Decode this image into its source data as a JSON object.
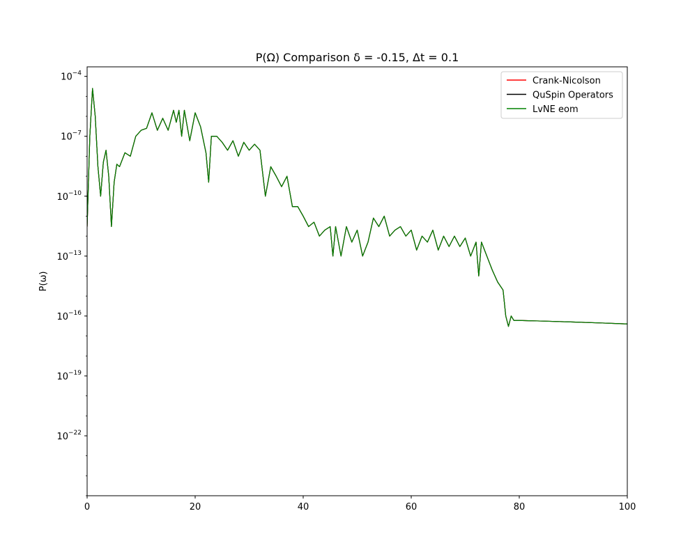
{
  "chart_data": {
    "type": "line",
    "title": "P(Ω) Comparison δ = -0.15, Δt = 0.1",
    "xlabel": "",
    "ylabel": "P(ω)",
    "xlim": [
      0,
      100
    ],
    "ylim": [
      1e-25,
      0.0003
    ],
    "yscale": "log",
    "grid": false,
    "legend_position": "top-right",
    "x_ticks": [
      {
        "value": 0,
        "label": "0"
      },
      {
        "value": 20,
        "label": "20"
      },
      {
        "value": 40,
        "label": "40"
      },
      {
        "value": 60,
        "label": "60"
      },
      {
        "value": 80,
        "label": "80"
      },
      {
        "value": 100,
        "label": "100"
      }
    ],
    "y_ticks": [
      {
        "value": 1e-22,
        "base": "10",
        "exp": "−22"
      },
      {
        "value": 1e-19,
        "base": "10",
        "exp": "−19"
      },
      {
        "value": 1e-16,
        "base": "10",
        "exp": "−16"
      },
      {
        "value": 1e-13,
        "base": "10",
        "exp": "−13"
      },
      {
        "value": 1e-10,
        "base": "10",
        "exp": "−10"
      },
      {
        "value": 1e-07,
        "base": "10",
        "exp": "−7"
      },
      {
        "value": 0.0001,
        "base": "10",
        "exp": "−4"
      }
    ],
    "x": [
      0,
      0.5,
      1.0,
      1.5,
      2.0,
      2.5,
      3.0,
      3.5,
      4.0,
      4.5,
      5.0,
      5.5,
      6.0,
      7.0,
      8.0,
      9.0,
      10.0,
      11.0,
      12.0,
      13.0,
      14.0,
      15.0,
      16.0,
      16.5,
      17.0,
      17.5,
      18.0,
      19.0,
      20.0,
      21.0,
      22.0,
      22.5,
      23.0,
      24.0,
      25.0,
      26.0,
      27.0,
      28.0,
      29.0,
      30.0,
      31.0,
      32.0,
      33.0,
      34.0,
      35.0,
      36.0,
      37.0,
      38.0,
      39.0,
      40.0,
      41.0,
      42.0,
      43.0,
      44.0,
      45.0,
      45.5,
      46.0,
      47.0,
      48.0,
      49.0,
      50.0,
      51.0,
      52.0,
      53.0,
      54.0,
      55.0,
      56.0,
      57.0,
      58.0,
      59.0,
      60.0,
      61.0,
      62.0,
      63.0,
      64.0,
      65.0,
      66.0,
      67.0,
      68.0,
      69.0,
      70.0,
      71.0,
      72.0,
      72.5,
      73.0,
      74.0,
      75.0,
      76.0,
      77.0,
      77.5,
      78.0,
      78.5,
      79.0,
      80.0,
      85.0,
      90.0,
      95.0,
      100.0
    ],
    "series": [
      {
        "name": "Crank-Nicolson",
        "color": "#ff0000",
        "y": [
          3e-12,
          1e-07,
          2.5e-05,
          1e-06,
          3e-09,
          1e-10,
          5e-09,
          2e-08,
          1e-09,
          3e-12,
          5e-10,
          4e-09,
          3e-09,
          1.5e-08,
          1e-08,
          1e-07,
          2e-07,
          2.5e-07,
          1.5e-06,
          2e-07,
          8e-07,
          2e-07,
          2e-06,
          5e-07,
          2e-06,
          1e-07,
          2e-06,
          6e-08,
          1.5e-06,
          3e-07,
          1.5e-08,
          5e-10,
          1e-07,
          1e-07,
          5e-08,
          2e-08,
          6e-08,
          1e-08,
          5e-08,
          2e-08,
          4e-08,
          2e-08,
          1e-10,
          3e-09,
          1e-09,
          3e-10,
          1e-09,
          3e-11,
          3e-11,
          1e-11,
          3e-12,
          5e-12,
          1e-12,
          2e-12,
          3e-12,
          1e-13,
          3e-12,
          1e-13,
          3e-12,
          5e-13,
          2e-12,
          1e-13,
          5e-13,
          8e-12,
          3e-12,
          1e-11,
          1e-12,
          2e-12,
          3e-12,
          1e-12,
          2e-12,
          2e-13,
          1e-12,
          5e-13,
          2e-12,
          2e-13,
          1e-12,
          3e-13,
          1e-12,
          3e-13,
          8e-13,
          1e-13,
          5e-13,
          1e-14,
          5e-13,
          1e-13,
          2e-14,
          5e-15,
          2e-15,
          1e-16,
          3e-17,
          1e-16,
          6e-17,
          6e-17,
          5.5e-17,
          5e-17,
          4.5e-17,
          4e-17
        ]
      },
      {
        "name": "QuSpin Operators",
        "color": "#000000",
        "y": [
          3e-12,
          1e-07,
          2.5e-05,
          1e-06,
          3e-09,
          1e-10,
          5e-09,
          2e-08,
          1e-09,
          3e-12,
          5e-10,
          4e-09,
          3e-09,
          1.5e-08,
          1e-08,
          1e-07,
          2e-07,
          2.5e-07,
          1.5e-06,
          2e-07,
          8e-07,
          2e-07,
          2e-06,
          5e-07,
          2e-06,
          1e-07,
          2e-06,
          6e-08,
          1.5e-06,
          3e-07,
          1.5e-08,
          5e-10,
          1e-07,
          1e-07,
          5e-08,
          2e-08,
          6e-08,
          1e-08,
          5e-08,
          2e-08,
          4e-08,
          2e-08,
          1e-10,
          3e-09,
          1e-09,
          3e-10,
          1e-09,
          3e-11,
          3e-11,
          1e-11,
          3e-12,
          5e-12,
          1e-12,
          2e-12,
          3e-12,
          1e-13,
          3e-12,
          1e-13,
          3e-12,
          5e-13,
          2e-12,
          1e-13,
          5e-13,
          8e-12,
          3e-12,
          1e-11,
          1e-12,
          2e-12,
          3e-12,
          1e-12,
          2e-12,
          2e-13,
          1e-12,
          5e-13,
          2e-12,
          2e-13,
          1e-12,
          3e-13,
          1e-12,
          3e-13,
          8e-13,
          1e-13,
          5e-13,
          1e-14,
          5e-13,
          1e-13,
          2e-14,
          5e-15,
          2e-15,
          1e-16,
          3e-17,
          1e-16,
          6e-17,
          6e-17,
          5.5e-17,
          5e-17,
          4.5e-17,
          4e-17
        ]
      },
      {
        "name": "LvNE eom",
        "color": "#008000",
        "y": [
          3e-12,
          1e-07,
          2.5e-05,
          1e-06,
          3e-09,
          1e-10,
          5e-09,
          2e-08,
          1e-09,
          3e-12,
          5e-10,
          4e-09,
          3e-09,
          1.5e-08,
          1e-08,
          1e-07,
          2e-07,
          2.5e-07,
          1.5e-06,
          2e-07,
          8e-07,
          2e-07,
          2e-06,
          5e-07,
          2e-06,
          1e-07,
          2e-06,
          6e-08,
          1.5e-06,
          3e-07,
          1.5e-08,
          5e-10,
          1e-07,
          1e-07,
          5e-08,
          2e-08,
          6e-08,
          1e-08,
          5e-08,
          2e-08,
          4e-08,
          2e-08,
          1e-10,
          3e-09,
          1e-09,
          3e-10,
          1e-09,
          3e-11,
          3e-11,
          1e-11,
          3e-12,
          5e-12,
          1e-12,
          2e-12,
          3e-12,
          1e-13,
          3e-12,
          1e-13,
          3e-12,
          5e-13,
          2e-12,
          1e-13,
          5e-13,
          8e-12,
          3e-12,
          1e-11,
          1e-12,
          2e-12,
          3e-12,
          1e-12,
          2e-12,
          2e-13,
          1e-12,
          5e-13,
          2e-12,
          2e-13,
          1e-12,
          3e-13,
          1e-12,
          3e-13,
          8e-13,
          1e-13,
          5e-13,
          1e-14,
          5e-13,
          1e-13,
          2e-14,
          5e-15,
          2e-15,
          1e-16,
          3e-17,
          1e-16,
          6e-17,
          6e-17,
          5.5e-17,
          5e-17,
          4.5e-17,
          4e-17
        ]
      }
    ]
  }
}
